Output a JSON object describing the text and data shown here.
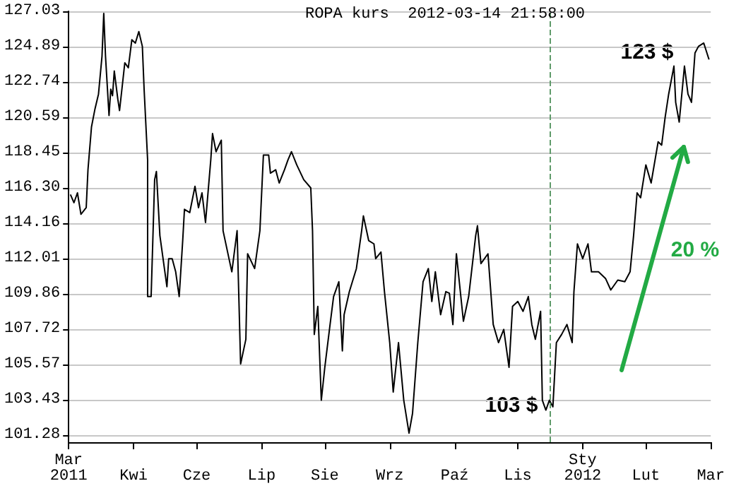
{
  "chart_data": {
    "type": "line",
    "title": "ROPA kurs  2012-03-14 21:58:00",
    "xlim": [
      "2011-03-14",
      "2012-03-14"
    ],
    "xticks": [
      {
        "value": "2011-03-14",
        "label": "Mar\n2011"
      },
      {
        "value": "2011-04-20",
        "label": "Kwi"
      },
      {
        "value": "2011-05-26",
        "label": "Cze"
      },
      {
        "value": "2011-07-02",
        "label": "Lip"
      },
      {
        "value": "2011-08-07",
        "label": "Sie"
      },
      {
        "value": "2011-09-13",
        "label": "Wrz"
      },
      {
        "value": "2011-10-20",
        "label": "Paź"
      },
      {
        "value": "2011-11-25",
        "label": "Lis"
      },
      {
        "value": "2012-01-01",
        "label": "Sty\n2012"
      },
      {
        "value": "2012-02-06",
        "label": "Lut"
      },
      {
        "value": "2012-03-14",
        "label": "Mar"
      }
    ],
    "ylim": [
      100.85,
      127.03
    ],
    "yticks": [
      101.28,
      103.43,
      105.57,
      107.72,
      109.86,
      112.01,
      114.16,
      {
        "value": 116.3,
        "label": "116.30"
      },
      118.45,
      120.59,
      122.74,
      124.89,
      127.03
    ],
    "series": [
      {
        "color": "#000000",
        "x": [
          "2011-03-15",
          "2011-03-17",
          "2011-03-19",
          "2011-03-21",
          "2011-03-24",
          "2011-03-25",
          "2011-03-27",
          "2011-03-29",
          "2011-03-31",
          "2011-04-02",
          "2011-04-03",
          "2011-04-04",
          "2011-04-06",
          "2011-04-07",
          "2011-04-08",
          "2011-04-09",
          "2011-04-11",
          "2011-04-12",
          "2011-04-15",
          "2011-04-17",
          "2011-04-19",
          "2011-04-21",
          "2011-04-23",
          "2011-04-25",
          "2011-04-26",
          "2011-04-28",
          "2011-04-28",
          "2011-04-30",
          "2011-05-02",
          "2011-05-03",
          "2011-05-05",
          "2011-05-09",
          "2011-05-10",
          "2011-05-12",
          "2011-05-14",
          "2011-05-16",
          "2011-05-18",
          "2011-05-19",
          "2011-05-22",
          "2011-05-25",
          "2011-05-27",
          "2011-05-29",
          "2011-05-31",
          "2011-06-03",
          "2011-06-04",
          "2011-06-06",
          "2011-06-09",
          "2011-06-10",
          "2011-06-15",
          "2011-06-18",
          "2011-06-20",
          "2011-06-23",
          "2011-06-24",
          "2011-06-28",
          "2011-07-01",
          "2011-07-03",
          "2011-07-06",
          "2011-07-07",
          "2011-07-10",
          "2011-07-12",
          "2011-07-15",
          "2011-07-17",
          "2011-07-19",
          "2011-07-22",
          "2011-07-26",
          "2011-07-30",
          "2011-07-31",
          "2011-08-01",
          "2011-08-03",
          "2011-08-05",
          "2011-08-07",
          "2011-08-10",
          "2011-08-12",
          "2011-08-15",
          "2011-08-17",
          "2011-08-18",
          "2011-08-21",
          "2011-08-25",
          "2011-08-28",
          "2011-08-29",
          "2011-09-01",
          "2011-09-04",
          "2011-09-05",
          "2011-09-08",
          "2011-09-10",
          "2011-09-13",
          "2011-09-15",
          "2011-09-18",
          "2011-09-21",
          "2011-09-24",
          "2011-09-26",
          "2011-09-29",
          "2011-10-02",
          "2011-10-05",
          "2011-10-07",
          "2011-10-09",
          "2011-10-12",
          "2011-10-15",
          "2011-10-17",
          "2011-10-19",
          "2011-10-21",
          "2011-10-25",
          "2011-10-28",
          "2011-11-01",
          "2011-11-02",
          "2011-11-04",
          "2011-11-08",
          "2011-11-11",
          "2011-11-14",
          "2011-11-17",
          "2011-11-20",
          "2011-11-22",
          "2011-11-25",
          "2011-11-28",
          "2011-12-01",
          "2011-12-03",
          "2011-12-05",
          "2011-12-08",
          "2011-12-09",
          "2011-12-11",
          "2011-12-13",
          "2011-12-15",
          "2011-12-17",
          "2011-12-20",
          "2011-12-23",
          "2011-12-26",
          "2011-12-27",
          "2011-12-29",
          "2012-01-01",
          "2012-01-04",
          "2012-01-06",
          "2012-01-10",
          "2012-01-14",
          "2012-01-17",
          "2012-01-21",
          "2012-01-25",
          "2012-01-28",
          "2012-01-30",
          "2012-02-01",
          "2012-02-03",
          "2012-02-06",
          "2012-02-09",
          "2012-02-13",
          "2012-02-15",
          "2012-02-17",
          "2012-02-19",
          "2012-02-22",
          "2012-02-23",
          "2012-02-25",
          "2012-02-28",
          "2012-03-01",
          "2012-03-03",
          "2012-03-05",
          "2012-03-07",
          "2012-03-10",
          "2012-03-13"
        ],
        "values": [
          115.9,
          115.4,
          116.0,
          114.7,
          115.1,
          117.4,
          120.0,
          121.1,
          122.0,
          124.3,
          126.9,
          124.3,
          120.7,
          122.3,
          121.9,
          123.4,
          121.7,
          121.0,
          123.9,
          123.6,
          125.3,
          125.1,
          125.8,
          124.9,
          122.3,
          118.0,
          109.7,
          109.7,
          116.8,
          117.3,
          113.4,
          110.3,
          112.0,
          112.0,
          111.2,
          109.7,
          113.1,
          115.0,
          114.8,
          116.4,
          115.1,
          116.0,
          114.2,
          118.0,
          119.6,
          118.5,
          119.2,
          113.7,
          111.2,
          113.7,
          105.6,
          107.1,
          112.3,
          111.4,
          113.7,
          118.3,
          118.3,
          117.2,
          117.4,
          116.6,
          117.4,
          118.0,
          118.5,
          117.7,
          116.8,
          116.3,
          113.7,
          107.4,
          109.1,
          103.4,
          105.4,
          108.0,
          109.7,
          110.6,
          106.4,
          108.6,
          110.0,
          111.4,
          113.7,
          114.6,
          113.1,
          112.9,
          112.0,
          112.4,
          110.0,
          106.9,
          103.9,
          106.9,
          103.4,
          101.4,
          102.6,
          106.9,
          110.6,
          111.4,
          109.4,
          111.2,
          108.6,
          110.0,
          109.9,
          108.0,
          112.3,
          108.2,
          109.7,
          113.4,
          114.0,
          111.7,
          112.3,
          108.0,
          106.9,
          107.7,
          105.4,
          109.1,
          109.4,
          108.8,
          109.7,
          108.0,
          107.1,
          108.8,
          103.4,
          102.8,
          103.4,
          103.0,
          106.9,
          107.4,
          108.0,
          106.9,
          110.0,
          112.9,
          112.0,
          112.9,
          111.2,
          111.2,
          110.8,
          110.1,
          110.7,
          110.6,
          111.2,
          113.4,
          116.0,
          115.7,
          117.7,
          116.6,
          119.1,
          118.9,
          120.6,
          122.0,
          123.7,
          121.5,
          120.3,
          123.7,
          122.0,
          121.5,
          124.5,
          124.9,
          125.1,
          124.1
        ]
      }
    ],
    "ref_lines": [
      {
        "axis": "x",
        "value": "2011-12-13",
        "color": "#5f9a6a",
        "line_style": "dashed"
      }
    ],
    "annotations": [
      "103 $",
      "123 $",
      "20 %"
    ],
    "grid": "y",
    "marker": "none",
    "line_style": "solid"
  }
}
